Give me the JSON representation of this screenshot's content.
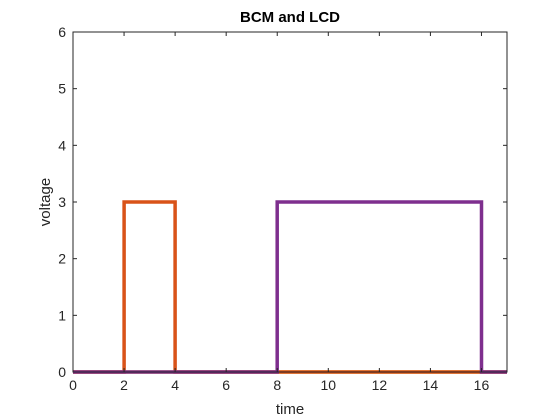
{
  "chart_data": {
    "type": "line",
    "title": "BCM and LCD",
    "xlabel": "time",
    "ylabel": "voltage",
    "xlim": [
      0,
      17
    ],
    "ylim": [
      0,
      6
    ],
    "xticks": [
      0,
      2,
      4,
      6,
      8,
      10,
      12,
      14,
      16
    ],
    "yticks": [
      0,
      1,
      2,
      3,
      4,
      5,
      6
    ],
    "grid": false,
    "box": true,
    "series": [
      {
        "color": "#EDB120",
        "x": [
          0,
          8,
          8,
          16,
          16,
          17
        ],
        "y": [
          0,
          0,
          0,
          0,
          0,
          0
        ]
      },
      {
        "color": "#D95319",
        "x": [
          0,
          2,
          2,
          4,
          4,
          17
        ],
        "y": [
          0,
          0,
          3,
          3,
          0,
          0
        ]
      },
      {
        "color": "#7E2F8E",
        "x": [
          0,
          8,
          8,
          16,
          16,
          17
        ],
        "y": [
          0,
          0,
          3,
          3,
          0,
          0
        ]
      }
    ]
  }
}
